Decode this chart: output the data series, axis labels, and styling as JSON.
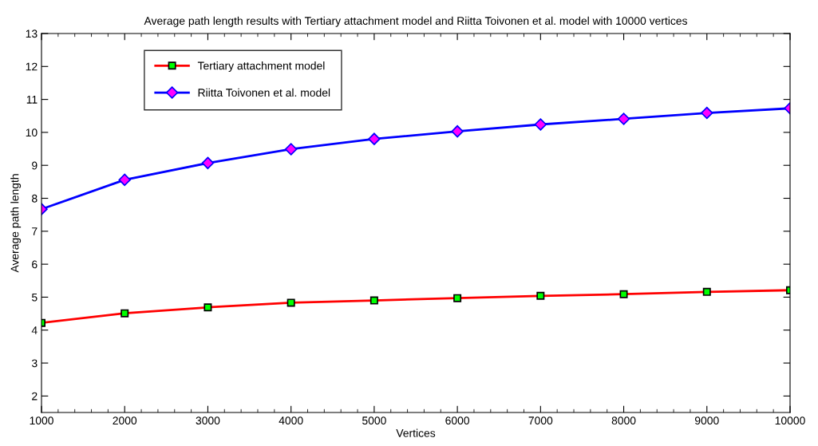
{
  "chart_data": {
    "type": "line",
    "title": "Average path length results with Tertiary attachment model and Riitta Toivonen et al. model with 10000 vertices",
    "xlabel": "Vertices",
    "ylabel": "Average path length",
    "x": [
      1000,
      2000,
      3000,
      4000,
      5000,
      6000,
      7000,
      8000,
      9000,
      10000
    ],
    "series": [
      {
        "name": "Tertiary attachment model",
        "color": "#ff0000",
        "marker": "square",
        "values": [
          4.22,
          4.51,
          4.69,
          4.83,
          4.9,
          4.97,
          5.04,
          5.09,
          5.16,
          5.21
        ]
      },
      {
        "name": "Riitta Toivonen et al. model",
        "color": "#0000ff",
        "marker": "diamond",
        "values": [
          7.67,
          8.56,
          9.07,
          9.49,
          9.8,
          10.03,
          10.24,
          10.41,
          10.59,
          10.73
        ]
      }
    ],
    "xlim": [
      1000,
      10000
    ],
    "xticks": [
      1000,
      2000,
      3000,
      4000,
      5000,
      6000,
      7000,
      8000,
      9000,
      10000
    ],
    "ylim": [
      1.5,
      13
    ],
    "yticks": [
      2,
      3,
      4,
      5,
      6,
      7,
      8,
      9,
      10,
      11,
      12,
      13
    ],
    "grid": false,
    "legend": "top left",
    "line_style": "solid"
  }
}
